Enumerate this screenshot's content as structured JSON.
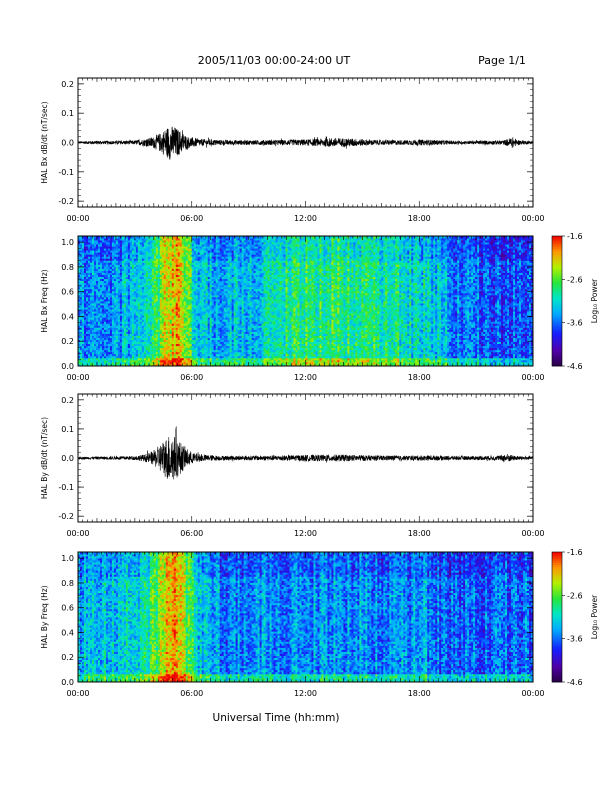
{
  "header": {
    "title": "2005/11/03  00:00-24:00 UT",
    "page": "Page 1/1"
  },
  "footer": {
    "xlabel": "Universal Time (hh:mm)"
  },
  "colorbar": {
    "label": "Log₁₀ Power",
    "ticks": [
      "-1.6",
      "-2.6",
      "-3.6",
      "-4.6"
    ],
    "range": [
      -4.6,
      -1.6
    ]
  },
  "chart_data": [
    {
      "type": "line",
      "ylabel": "HAL Bx dB/dt (nT/sec)",
      "xlim": [
        0,
        24
      ],
      "ylim": [
        -0.22,
        0.22
      ],
      "x_ticks": [
        "00:00",
        "06:00",
        "12:00",
        "18:00",
        "00:00"
      ],
      "y_ticks": [
        "0.2",
        "0.1",
        "0.0",
        "-0.1",
        "-0.2"
      ],
      "x_unit": "hours UT",
      "envelope": [
        [
          0,
          0.004
        ],
        [
          1,
          0.006
        ],
        [
          2,
          0.006
        ],
        [
          3,
          0.007
        ],
        [
          3.5,
          0.012
        ],
        [
          4,
          0.02
        ],
        [
          4.4,
          0.035
        ],
        [
          4.8,
          0.06
        ],
        [
          5.1,
          0.055
        ],
        [
          5.4,
          0.04
        ],
        [
          5.8,
          0.02
        ],
        [
          6.5,
          0.012
        ],
        [
          7.5,
          0.009
        ],
        [
          9,
          0.008
        ],
        [
          10.5,
          0.009
        ],
        [
          11.5,
          0.01
        ],
        [
          12.5,
          0.012
        ],
        [
          13.5,
          0.016
        ],
        [
          14.5,
          0.014
        ],
        [
          15.5,
          0.009
        ],
        [
          17,
          0.008
        ],
        [
          18.3,
          0.01
        ],
        [
          19,
          0.008
        ],
        [
          20,
          0.006
        ],
        [
          21,
          0.006
        ],
        [
          22.5,
          0.008
        ],
        [
          22.9,
          0.02
        ],
        [
          23.2,
          0.008
        ],
        [
          24,
          0.005
        ]
      ]
    },
    {
      "type": "heatmap",
      "ylabel": "HAL Bx Freq (Hz)",
      "xlim": [
        0,
        24
      ],
      "ylim": [
        0,
        1.05
      ],
      "x_ticks": [
        "00:00",
        "06:00",
        "12:00",
        "18:00",
        "00:00"
      ],
      "y_ticks": [
        "1.0",
        "0.8",
        "0.6",
        "0.4",
        "0.2",
        "0.0"
      ],
      "z_unit": "log10 power",
      "profile": [
        [
          0,
          -3.5
        ],
        [
          2,
          -3.4
        ],
        [
          3.5,
          -3.2
        ],
        [
          4.2,
          -2.7
        ],
        [
          4.8,
          -2.2
        ],
        [
          5.2,
          -2.0
        ],
        [
          5.6,
          -2.4
        ],
        [
          6.2,
          -3.1
        ],
        [
          7.5,
          -3.4
        ],
        [
          9,
          -3.3
        ],
        [
          10.5,
          -3.0
        ],
        [
          12,
          -2.8
        ],
        [
          14,
          -2.8
        ],
        [
          16,
          -2.9
        ],
        [
          18,
          -3.1
        ],
        [
          20,
          -3.5
        ],
        [
          22,
          -3.7
        ],
        [
          24,
          -3.7
        ]
      ]
    },
    {
      "type": "line",
      "ylabel": "HAL By dB/dt (nT/sec)",
      "xlim": [
        0,
        24
      ],
      "ylim": [
        -0.22,
        0.22
      ],
      "x_ticks": [
        "00:00",
        "06:00",
        "12:00",
        "18:00",
        "00:00"
      ],
      "y_ticks": [
        "0.2",
        "0.1",
        "0.0",
        "-0.1",
        "-0.2"
      ],
      "x_unit": "hours UT",
      "envelope": [
        [
          0,
          0.004
        ],
        [
          1,
          0.005
        ],
        [
          2,
          0.006
        ],
        [
          3,
          0.007
        ],
        [
          3.5,
          0.012
        ],
        [
          4,
          0.025
        ],
        [
          4.5,
          0.06
        ],
        [
          4.9,
          0.09
        ],
        [
          5.2,
          0.07
        ],
        [
          5.6,
          0.04
        ],
        [
          6,
          0.02
        ],
        [
          6.5,
          0.012
        ],
        [
          7.5,
          0.008
        ],
        [
          9,
          0.008
        ],
        [
          10.5,
          0.009
        ],
        [
          11.5,
          0.01
        ],
        [
          12.5,
          0.011
        ],
        [
          13.5,
          0.012
        ],
        [
          14.5,
          0.011
        ],
        [
          15.5,
          0.009
        ],
        [
          17,
          0.008
        ],
        [
          18.3,
          0.009
        ],
        [
          19,
          0.008
        ],
        [
          20,
          0.007
        ],
        [
          21,
          0.007
        ],
        [
          22.2,
          0.008
        ],
        [
          22.6,
          0.016
        ],
        [
          23,
          0.008
        ],
        [
          24,
          0.005
        ]
      ]
    },
    {
      "type": "heatmap",
      "ylabel": "HAL By Freq (Hz)",
      "xlim": [
        0,
        24
      ],
      "ylim": [
        0,
        1.05
      ],
      "x_ticks": [
        "00:00",
        "06:00",
        "12:00",
        "18:00",
        "00:00"
      ],
      "y_ticks": [
        "1.0",
        "0.8",
        "0.6",
        "0.4",
        "0.2",
        "0.0"
      ],
      "z_unit": "log10 power",
      "profile": [
        [
          0,
          -3.3
        ],
        [
          2,
          -3.2
        ],
        [
          3.5,
          -3.0
        ],
        [
          4.2,
          -2.6
        ],
        [
          4.8,
          -2.1
        ],
        [
          5.2,
          -2.0
        ],
        [
          5.6,
          -2.4
        ],
        [
          6.2,
          -3.1
        ],
        [
          7.5,
          -3.5
        ],
        [
          9,
          -3.5
        ],
        [
          10.5,
          -3.5
        ],
        [
          12,
          -3.5
        ],
        [
          14,
          -3.4
        ],
        [
          16,
          -3.5
        ],
        [
          18,
          -3.4
        ],
        [
          20,
          -3.7
        ],
        [
          22,
          -3.6
        ],
        [
          24,
          -3.6
        ]
      ]
    }
  ]
}
